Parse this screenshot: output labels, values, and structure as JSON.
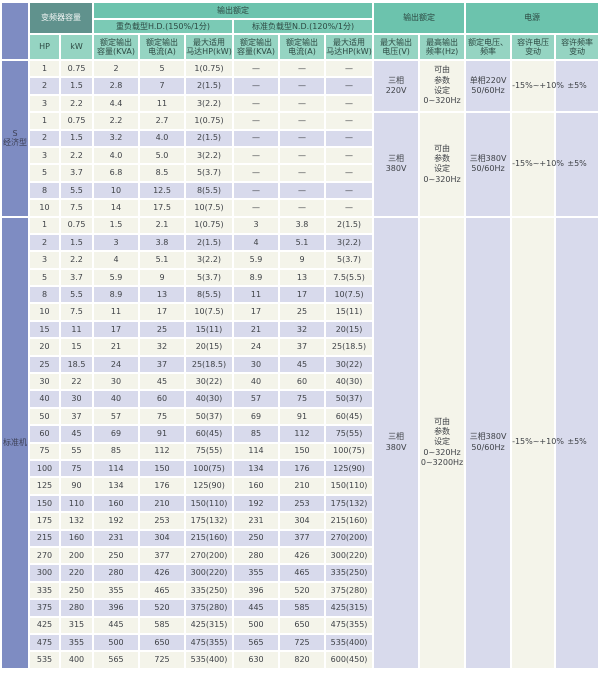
{
  "header": {
    "inverter_capacity": "变频器容量",
    "output_spec": "输出额定",
    "hd_group": "重负载型H.D.(150%/1分)",
    "nd_group": "标准负载型N.D.(120%/1分)",
    "output_rating": "输出额定",
    "power_supply": "电源",
    "sub": {
      "hp": "HP",
      "kw": "kW",
      "rated_capacity": "额定输出\n容量(KVA)",
      "rated_current": "额定输出\n电流(A)",
      "max_motor": "最大适用\n马达HP(kW)",
      "max_voltage": "最大输出\n电压(V)",
      "max_frequency": "最高输出\n频率(Hz)",
      "rated_voltage_freq": "额定电压、\n频率",
      "voltage_tolerance": "容许电压\n变动",
      "frequency_tolerance": "容许频率\n变动"
    }
  },
  "colors": {
    "header-teal-1": "#6cc3ad",
    "header-teal-2": "#7bcab5",
    "header-teal-3": "#95d4c2",
    "header-dark-teal": "#60928d",
    "label-blue": "#7e8cc2",
    "row-ivory": "#f4f4ea",
    "row-lavender": "#d8daec"
  },
  "sections": [
    {
      "label": "S\n经济型",
      "groups": [
        {
          "max_voltage": "三相\n220V",
          "max_frequency": "可由\n参数\n设定\n0~320Hz",
          "supply": "单相220V\n50/60Hz",
          "voltage_tolerance": "-15%~+10%",
          "frequency_tolerance": "±5%",
          "rows": [
            {
              "hp": "1",
              "kw": "0.75",
              "hd": [
                "2",
                "5",
                "1(0.75)"
              ],
              "nd": [
                "—",
                "—",
                "—"
              ]
            },
            {
              "hp": "2",
              "kw": "1.5",
              "hd": [
                "2.8",
                "7",
                "2(1.5)"
              ],
              "nd": [
                "—",
                "—",
                "—"
              ]
            },
            {
              "hp": "3",
              "kw": "2.2",
              "hd": [
                "4.4",
                "11",
                "3(2.2)"
              ],
              "nd": [
                "—",
                "—",
                "—"
              ]
            }
          ]
        },
        {
          "max_voltage": "三相\n380V",
          "max_frequency": "可由\n参数\n设定\n0~320Hz",
          "supply": "三相380V\n50/60Hz",
          "voltage_tolerance": "-15%~+10%",
          "frequency_tolerance": "±5%",
          "rows": [
            {
              "hp": "1",
              "kw": "0.75",
              "hd": [
                "2.2",
                "2.7",
                "1(0.75)"
              ],
              "nd": [
                "—",
                "—",
                "—"
              ]
            },
            {
              "hp": "2",
              "kw": "1.5",
              "hd": [
                "3.2",
                "4.0",
                "2(1.5)"
              ],
              "nd": [
                "—",
                "—",
                "—"
              ]
            },
            {
              "hp": "3",
              "kw": "2.2",
              "hd": [
                "4.0",
                "5.0",
                "3(2.2)"
              ],
              "nd": [
                "—",
                "—",
                "—"
              ]
            },
            {
              "hp": "5",
              "kw": "3.7",
              "hd": [
                "6.8",
                "8.5",
                "5(3.7)"
              ],
              "nd": [
                "—",
                "—",
                "—"
              ]
            },
            {
              "hp": "8",
              "kw": "5.5",
              "hd": [
                "10",
                "12.5",
                "8(5.5)"
              ],
              "nd": [
                "—",
                "—",
                "—"
              ]
            },
            {
              "hp": "10",
              "kw": "7.5",
              "hd": [
                "14",
                "17.5",
                "10(7.5)"
              ],
              "nd": [
                "—",
                "—",
                "—"
              ]
            }
          ]
        }
      ]
    },
    {
      "label": "标准机",
      "groups": [
        {
          "max_voltage": "三相\n380V",
          "max_frequency": "可由\n参数\n设定\n0~320Hz\n0~3200Hz",
          "supply": "三相380V\n50/60Hz",
          "voltage_tolerance": "-15%~+10%",
          "frequency_tolerance": "±5%",
          "rows": [
            {
              "hp": "1",
              "kw": "0.75",
              "hd": [
                "1.5",
                "2.1",
                "1(0.75)"
              ],
              "nd": [
                "3",
                "3.8",
                "2(1.5)"
              ]
            },
            {
              "hp": "2",
              "kw": "1.5",
              "hd": [
                "3",
                "3.8",
                "2(1.5)"
              ],
              "nd": [
                "4",
                "5.1",
                "3(2.2)"
              ]
            },
            {
              "hp": "3",
              "kw": "2.2",
              "hd": [
                "4",
                "5.1",
                "3(2.2)"
              ],
              "nd": [
                "5.9",
                "9",
                "5(3.7)"
              ]
            },
            {
              "hp": "5",
              "kw": "3.7",
              "hd": [
                "5.9",
                "9",
                "5(3.7)"
              ],
              "nd": [
                "8.9",
                "13",
                "7.5(5.5)"
              ]
            },
            {
              "hp": "8",
              "kw": "5.5",
              "hd": [
                "8.9",
                "13",
                "8(5.5)"
              ],
              "nd": [
                "11",
                "17",
                "10(7.5)"
              ]
            },
            {
              "hp": "10",
              "kw": "7.5",
              "hd": [
                "11",
                "17",
                "10(7.5)"
              ],
              "nd": [
                "17",
                "25",
                "15(11)"
              ]
            },
            {
              "hp": "15",
              "kw": "11",
              "hd": [
                "17",
                "25",
                "15(11)"
              ],
              "nd": [
                "21",
                "32",
                "20(15)"
              ]
            },
            {
              "hp": "20",
              "kw": "15",
              "hd": [
                "21",
                "32",
                "20(15)"
              ],
              "nd": [
                "24",
                "37",
                "25(18.5)"
              ]
            },
            {
              "hp": "25",
              "kw": "18.5",
              "hd": [
                "24",
                "37",
                "25(18.5)"
              ],
              "nd": [
                "30",
                "45",
                "30(22)"
              ]
            },
            {
              "hp": "30",
              "kw": "22",
              "hd": [
                "30",
                "45",
                "30(22)"
              ],
              "nd": [
                "40",
                "60",
                "40(30)"
              ]
            },
            {
              "hp": "40",
              "kw": "30",
              "hd": [
                "40",
                "60",
                "40(30)"
              ],
              "nd": [
                "57",
                "75",
                "50(37)"
              ]
            },
            {
              "hp": "50",
              "kw": "37",
              "hd": [
                "57",
                "75",
                "50(37)"
              ],
              "nd": [
                "69",
                "91",
                "60(45)"
              ]
            },
            {
              "hp": "60",
              "kw": "45",
              "hd": [
                "69",
                "91",
                "60(45)"
              ],
              "nd": [
                "85",
                "112",
                "75(55)"
              ]
            },
            {
              "hp": "75",
              "kw": "55",
              "hd": [
                "85",
                "112",
                "75(55)"
              ],
              "nd": [
                "114",
                "150",
                "100(75)"
              ]
            },
            {
              "hp": "100",
              "kw": "75",
              "hd": [
                "114",
                "150",
                "100(75)"
              ],
              "nd": [
                "134",
                "176",
                "125(90)"
              ]
            },
            {
              "hp": "125",
              "kw": "90",
              "hd": [
                "134",
                "176",
                "125(90)"
              ],
              "nd": [
                "160",
                "210",
                "150(110)"
              ]
            },
            {
              "hp": "150",
              "kw": "110",
              "hd": [
                "160",
                "210",
                "150(110)"
              ],
              "nd": [
                "192",
                "253",
                "175(132)"
              ]
            },
            {
              "hp": "175",
              "kw": "132",
              "hd": [
                "192",
                "253",
                "175(132)"
              ],
              "nd": [
                "231",
                "304",
                "215(160)"
              ]
            },
            {
              "hp": "215",
              "kw": "160",
              "hd": [
                "231",
                "304",
                "215(160)"
              ],
              "nd": [
                "250",
                "377",
                "270(200)"
              ]
            },
            {
              "hp": "270",
              "kw": "200",
              "hd": [
                "250",
                "377",
                "270(200)"
              ],
              "nd": [
                "280",
                "426",
                "300(220)"
              ]
            },
            {
              "hp": "300",
              "kw": "220",
              "hd": [
                "280",
                "426",
                "300(220)"
              ],
              "nd": [
                "355",
                "465",
                "335(250)"
              ]
            },
            {
              "hp": "335",
              "kw": "250",
              "hd": [
                "355",
                "465",
                "335(250)"
              ],
              "nd": [
                "396",
                "520",
                "375(280)"
              ]
            },
            {
              "hp": "375",
              "kw": "280",
              "hd": [
                "396",
                "520",
                "375(280)"
              ],
              "nd": [
                "445",
                "585",
                "425(315)"
              ]
            },
            {
              "hp": "425",
              "kw": "315",
              "hd": [
                "445",
                "585",
                "425(315)"
              ],
              "nd": [
                "500",
                "650",
                "475(355)"
              ]
            },
            {
              "hp": "475",
              "kw": "355",
              "hd": [
                "500",
                "650",
                "475(355)"
              ],
              "nd": [
                "565",
                "725",
                "535(400)"
              ]
            },
            {
              "hp": "535",
              "kw": "400",
              "hd": [
                "565",
                "725",
                "535(400)"
              ],
              "nd": [
                "630",
                "820",
                "600(450)"
              ]
            }
          ]
        }
      ]
    }
  ]
}
